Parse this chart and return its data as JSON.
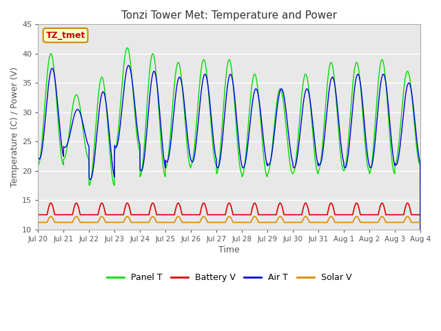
{
  "title": "Tonzi Tower Met: Temperature and Power",
  "xlabel": "Time",
  "ylabel": "Temperature (C) / Power (V)",
  "ylim": [
    10,
    45
  ],
  "yticks": [
    10,
    15,
    20,
    25,
    30,
    35,
    40,
    45
  ],
  "annotation_text": "TZ_tmet",
  "annotation_color": "#cc0000",
  "annotation_bg": "#ffffcc",
  "annotation_border": "#cc8800",
  "fig_bg": "#ffffff",
  "plot_bg": "#e8e8e8",
  "grid_color": "#ffffff",
  "panel_t_color": "#00dd00",
  "battery_v_color": "#dd0000",
  "air_t_color": "#0000dd",
  "solar_v_color": "#dd8800",
  "legend_labels": [
    "Panel T",
    "Battery V",
    "Air T",
    "Solar V"
  ],
  "n_days": 15,
  "x_start": 0,
  "x_end": 15,
  "xtick_labels": [
    "Jul 20",
    "Jul 21",
    "Jul 22",
    "Jul 23",
    "Jul 24",
    "Jul 25",
    "Jul 26",
    "Jul 27",
    "Jul 28",
    "Jul 29",
    "Jul 30",
    "Jul 31",
    "Aug 1",
    "Aug 2",
    "Aug 3",
    "Aug 4"
  ],
  "xtick_positions": [
    0,
    1,
    2,
    3,
    4,
    5,
    6,
    7,
    8,
    9,
    10,
    11,
    12,
    13,
    14,
    15
  ],
  "panel_t_peaks": [
    40,
    33,
    36,
    41,
    40,
    38.5,
    39,
    39,
    36.5,
    34,
    36.5,
    38.5,
    38.5,
    39,
    37
  ],
  "panel_t_mins": [
    21,
    22,
    17.5,
    23.5,
    19,
    20.5,
    21,
    19.5,
    19,
    19.5,
    19.5,
    20,
    20,
    19.5,
    21
  ],
  "air_t_peaks": [
    37.5,
    30.5,
    33.5,
    38,
    37,
    36,
    36.5,
    36.5,
    34,
    34,
    34,
    36,
    36.5,
    36.5,
    35
  ],
  "air_t_mins": [
    22,
    24,
    18.5,
    24,
    20,
    21.5,
    21.5,
    20.5,
    20.5,
    21,
    20.5,
    21,
    20.5,
    20.5,
    21
  ],
  "battery_v_peak": 14.5,
  "battery_v_base": 12.5,
  "solar_v_peak": 12.2,
  "solar_v_base": 11.2
}
